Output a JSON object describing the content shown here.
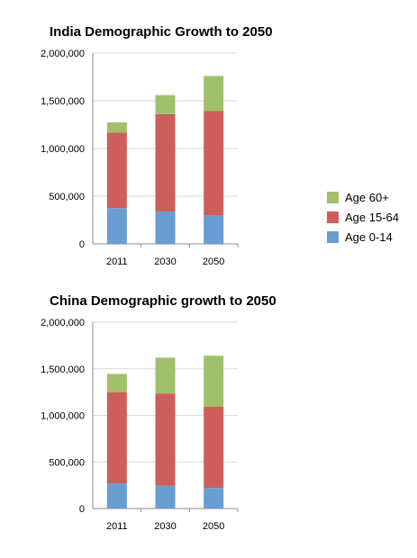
{
  "colors": {
    "age_0_14": "#6a9dd1",
    "age_15_64": "#cc5e5b",
    "age_60_plus": "#a0c169",
    "axis": "#8c8c8c",
    "grid": "#d9d9d9"
  },
  "legend": {
    "items": [
      {
        "label": "Age 60+",
        "color": "#a0c169"
      },
      {
        "label": "Age 15-64",
        "color": "#cc5e5b"
      },
      {
        "label": "Age 0-14",
        "color": "#6a9dd1"
      }
    ]
  },
  "chart_data": [
    {
      "type": "bar",
      "stacked": true,
      "title": "India Demographic Growth to 2050",
      "categories": [
        "2011",
        "2030",
        "2050"
      ],
      "ylim": [
        0,
        2000000
      ],
      "yticks": [
        "0",
        "500,000",
        "1,000,000",
        "1,500,000",
        "2,000,000"
      ],
      "grid": true,
      "legend_position": "right",
      "series": [
        {
          "name": "Age 0-14",
          "values": [
            375000,
            340000,
            295000
          ]
        },
        {
          "name": "Age 15-64",
          "values": [
            790000,
            1020000,
            1100000
          ]
        },
        {
          "name": "Age 60+",
          "values": [
            110000,
            200000,
            365000
          ]
        }
      ]
    },
    {
      "type": "bar",
      "stacked": true,
      "title": "China Demographic growth to 2050",
      "categories": [
        "2011",
        "2030",
        "2050"
      ],
      "ylim": [
        0,
        2000000
      ],
      "yticks": [
        "0",
        "500,000",
        "1,000,000",
        "1,500,000",
        "2,000,000"
      ],
      "grid": true,
      "legend_position": "right",
      "series": [
        {
          "name": "Age 0-14",
          "values": [
            270000,
            245000,
            220000
          ]
        },
        {
          "name": "Age 15-64",
          "values": [
            980000,
            990000,
            875000
          ]
        },
        {
          "name": "Age 60+",
          "values": [
            195000,
            385000,
            545000
          ]
        }
      ]
    }
  ]
}
